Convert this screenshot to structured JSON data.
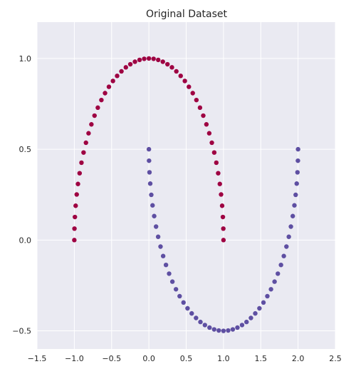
{
  "chart_data": {
    "type": "scatter",
    "title": "Original Dataset",
    "xlabel": "",
    "ylabel": "",
    "xlim": [
      -1.5,
      2.5
    ],
    "ylim": [
      -0.6,
      1.2
    ],
    "xticks": [
      -1.5,
      -1.0,
      -0.5,
      0.0,
      0.5,
      1.0,
      1.5,
      2.0,
      2.5
    ],
    "yticks": [
      -0.5,
      0.0,
      0.5,
      1.0
    ],
    "xtick_labels": [
      "−1.5",
      "−1.0",
      "−0.5",
      "0.0",
      "0.5",
      "1.0",
      "1.5",
      "2.0",
      "2.5"
    ],
    "ytick_labels": [
      "−0.5",
      "0.0",
      "0.5",
      "1.0"
    ],
    "grid": true,
    "background": "#EAEAF2",
    "grid_color": "#FFFFFF",
    "series": [
      {
        "color": "#9E0142",
        "points": [
          [
            -1.0,
            0.0
          ],
          [
            -0.998,
            0.063
          ],
          [
            -0.992,
            0.127
          ],
          [
            -0.982,
            0.189
          ],
          [
            -0.968,
            0.251
          ],
          [
            -0.951,
            0.309
          ],
          [
            -0.929,
            0.368
          ],
          [
            -0.904,
            0.426
          ],
          [
            -0.876,
            0.482
          ],
          [
            -0.844,
            0.536
          ],
          [
            -0.809,
            0.588
          ],
          [
            -0.771,
            0.637
          ],
          [
            -0.729,
            0.685
          ],
          [
            -0.685,
            0.729
          ],
          [
            -0.637,
            0.771
          ],
          [
            -0.588,
            0.809
          ],
          [
            -0.536,
            0.844
          ],
          [
            -0.482,
            0.876
          ],
          [
            -0.426,
            0.904
          ],
          [
            -0.368,
            0.929
          ],
          [
            -0.309,
            0.951
          ],
          [
            -0.249,
            0.968
          ],
          [
            -0.187,
            0.982
          ],
          [
            -0.125,
            0.992
          ],
          [
            -0.063,
            0.998
          ],
          [
            0.0,
            1.0
          ],
          [
            0.063,
            0.998
          ],
          [
            0.125,
            0.992
          ],
          [
            0.187,
            0.982
          ],
          [
            0.249,
            0.968
          ],
          [
            0.309,
            0.951
          ],
          [
            0.368,
            0.929
          ],
          [
            0.426,
            0.904
          ],
          [
            0.482,
            0.876
          ],
          [
            0.536,
            0.844
          ],
          [
            0.588,
            0.809
          ],
          [
            0.637,
            0.771
          ],
          [
            0.685,
            0.729
          ],
          [
            0.729,
            0.685
          ],
          [
            0.771,
            0.637
          ],
          [
            0.809,
            0.588
          ],
          [
            0.844,
            0.536
          ],
          [
            0.876,
            0.482
          ],
          [
            0.904,
            0.426
          ],
          [
            0.929,
            0.368
          ],
          [
            0.951,
            0.309
          ],
          [
            0.968,
            0.251
          ],
          [
            0.982,
            0.189
          ],
          [
            0.992,
            0.127
          ],
          [
            0.998,
            0.063
          ],
          [
            1.0,
            0.0
          ]
        ]
      },
      {
        "color": "#5E4FA2",
        "points": [
          [
            0.0,
            0.5
          ],
          [
            0.002,
            0.437
          ],
          [
            0.008,
            0.373
          ],
          [
            0.018,
            0.311
          ],
          [
            0.032,
            0.249
          ],
          [
            0.049,
            0.191
          ],
          [
            0.071,
            0.132
          ],
          [
            0.096,
            0.074
          ],
          [
            0.124,
            0.018
          ],
          [
            0.156,
            -0.036
          ],
          [
            0.191,
            -0.088
          ],
          [
            0.229,
            -0.137
          ],
          [
            0.271,
            -0.185
          ],
          [
            0.315,
            -0.229
          ],
          [
            0.363,
            -0.271
          ],
          [
            0.412,
            -0.309
          ],
          [
            0.464,
            -0.344
          ],
          [
            0.518,
            -0.376
          ],
          [
            0.574,
            -0.404
          ],
          [
            0.632,
            -0.429
          ],
          [
            0.691,
            -0.451
          ],
          [
            0.751,
            -0.468
          ],
          [
            0.813,
            -0.482
          ],
          [
            0.875,
            -0.492
          ],
          [
            0.937,
            -0.498
          ],
          [
            1.0,
            -0.5
          ],
          [
            1.063,
            -0.498
          ],
          [
            1.125,
            -0.492
          ],
          [
            1.187,
            -0.482
          ],
          [
            1.249,
            -0.468
          ],
          [
            1.309,
            -0.451
          ],
          [
            1.368,
            -0.429
          ],
          [
            1.426,
            -0.404
          ],
          [
            1.482,
            -0.376
          ],
          [
            1.536,
            -0.344
          ],
          [
            1.588,
            -0.309
          ],
          [
            1.637,
            -0.271
          ],
          [
            1.685,
            -0.229
          ],
          [
            1.729,
            -0.185
          ],
          [
            1.771,
            -0.137
          ],
          [
            1.809,
            -0.088
          ],
          [
            1.844,
            -0.036
          ],
          [
            1.876,
            0.018
          ],
          [
            1.904,
            0.074
          ],
          [
            1.929,
            0.132
          ],
          [
            1.951,
            0.191
          ],
          [
            1.968,
            0.249
          ],
          [
            1.982,
            0.311
          ],
          [
            1.992,
            0.373
          ],
          [
            1.998,
            0.437
          ],
          [
            2.0,
            0.5
          ]
        ]
      }
    ]
  }
}
